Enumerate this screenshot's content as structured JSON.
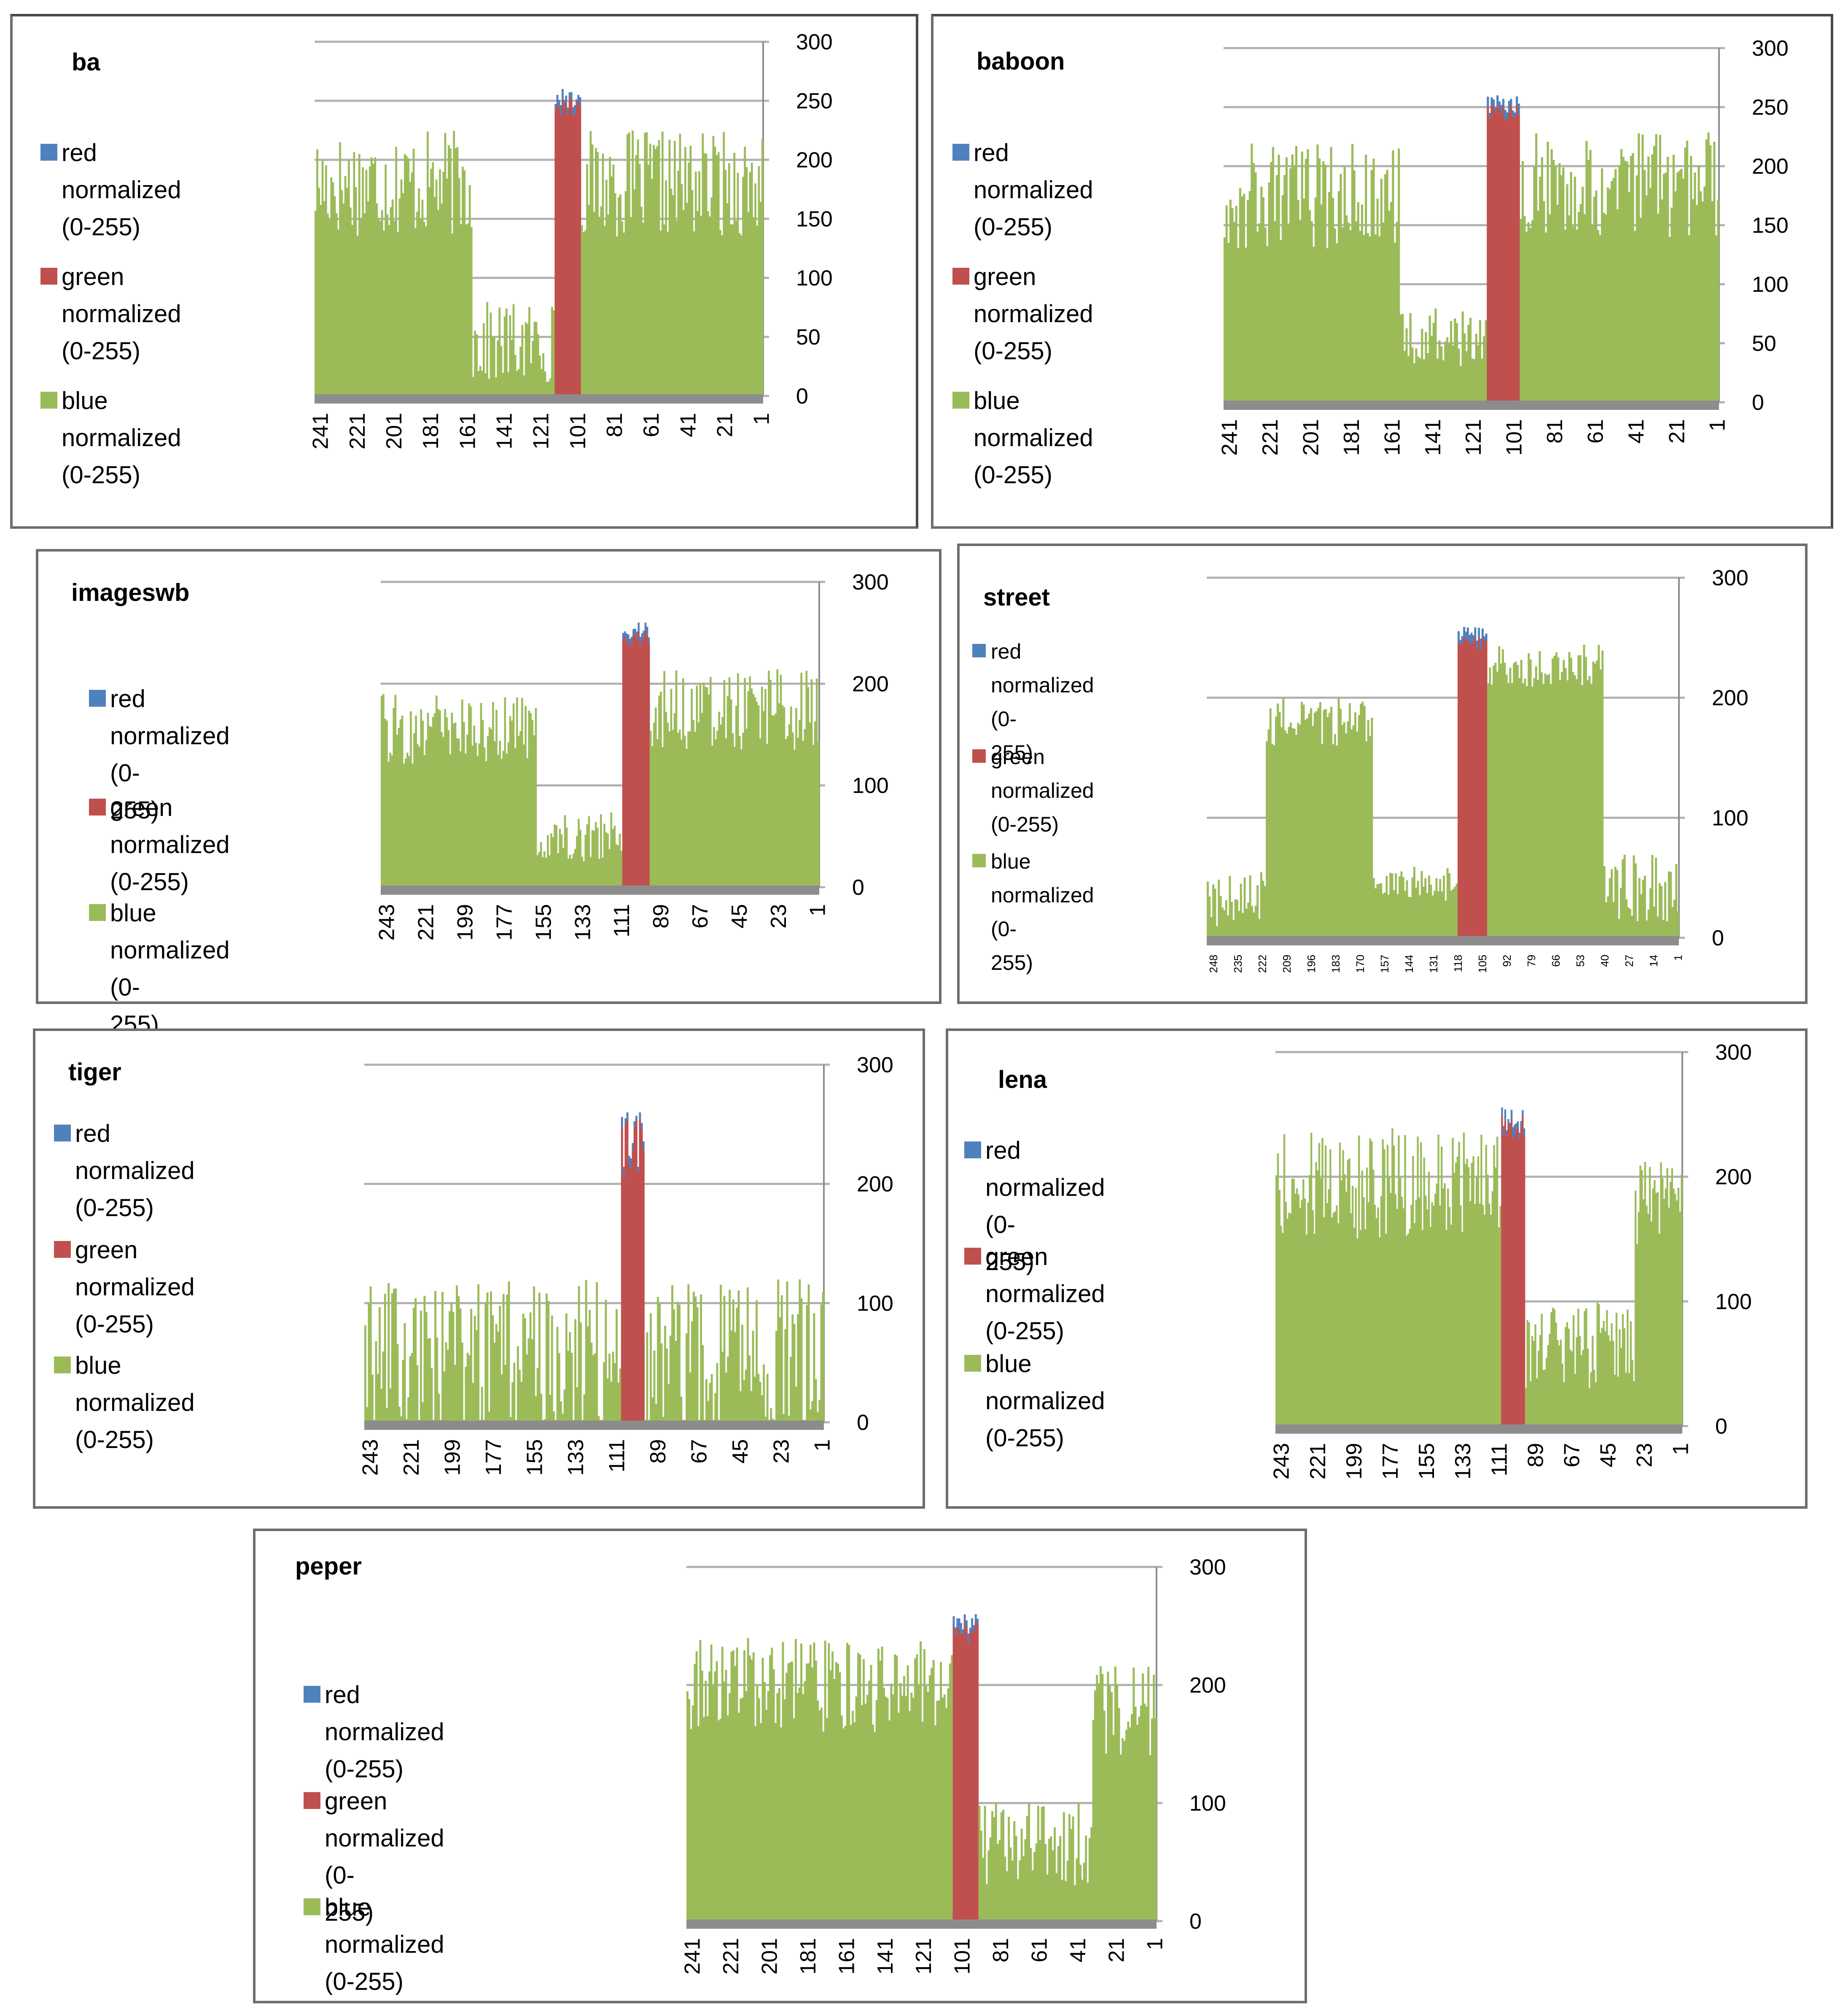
{
  "colors": {
    "red": "#4f81bd",
    "green": "#c0504d",
    "blue": "#9bbb59",
    "grid": "#b0b0b0",
    "base": "#8c8c8c"
  },
  "charts": [
    {
      "id": "ba",
      "title": "ba",
      "legend": [
        "red normalized\n(0-255)",
        "green normalized\n(0-255)",
        "blue normalized\n(0-255)"
      ],
      "y_ticks": [
        "300",
        "250",
        "200",
        "150",
        "100",
        "50",
        "0"
      ],
      "x_ticks": [
        "241",
        "221",
        "201",
        "181",
        "161",
        "141",
        "121",
        "101",
        "81",
        "61",
        "41",
        "21",
        "1"
      ],
      "chart_data": {
        "type": "bar",
        "stacked": true,
        "x_range": [
          256,
          1
        ],
        "ylim": [
          0,
          300
        ],
        "segments": [
          {
            "from": 256,
            "to": 167,
            "series": "blue normalized (0-255)",
            "level": 180,
            "spread": 45
          },
          {
            "from": 166,
            "to": 120,
            "series": "blue normalized (0-255)",
            "level": 45,
            "spread": 35
          },
          {
            "from": 119,
            "to": 105,
            "series": "green normalized (0-255)",
            "level": 245,
            "spread": 8
          },
          {
            "from": 104,
            "to": 1,
            "series": "blue normalized (0-255)",
            "level": 180,
            "spread": 45
          }
        ]
      }
    },
    {
      "id": "baboon",
      "title": "baboon",
      "legend": [
        "red normalized\n(0-255)",
        "green normalized\n(0-255)",
        "blue normalized\n(0-255)"
      ],
      "y_ticks": [
        "300",
        "250",
        "200",
        "150",
        "100",
        "50",
        "0"
      ],
      "x_ticks": [
        "241",
        "221",
        "201",
        "181",
        "161",
        "141",
        "121",
        "101",
        "81",
        "61",
        "41",
        "21",
        "1"
      ],
      "chart_data": {
        "type": "bar",
        "stacked": true,
        "x_range": [
          256,
          1
        ],
        "ylim": [
          0,
          300
        ],
        "segments": [
          {
            "from": 256,
            "to": 166,
            "series": "blue normalized (0-255)",
            "level": 175,
            "spread": 45
          },
          {
            "from": 165,
            "to": 121,
            "series": "blue normalized (0-255)",
            "level": 55,
            "spread": 25
          },
          {
            "from": 120,
            "to": 104,
            "series": "green normalized (0-255)",
            "level": 245,
            "spread": 8
          },
          {
            "from": 103,
            "to": 1,
            "series": "blue normalized (0-255)",
            "level": 185,
            "spread": 45
          }
        ]
      }
    },
    {
      "id": "imageswb",
      "title": "imageswb",
      "legend": [
        "red normalized  (0-\n255)",
        "green normalized\n(0-255)",
        "blue normalized  (0-\n255)"
      ],
      "y_ticks": [
        "300",
        "200",
        "100",
        "0"
      ],
      "x_ticks": [
        "243",
        "221",
        "199",
        "177",
        "155",
        "133",
        "111",
        "89",
        "67",
        "45",
        "23",
        "1"
      ],
      "chart_data": {
        "type": "bar",
        "stacked": true,
        "x_range": [
          256,
          1
        ],
        "ylim": [
          0,
          300
        ],
        "segments": [
          {
            "from": 256,
            "to": 166,
            "series": "blue normalized (0-255)",
            "level": 155,
            "spread": 35
          },
          {
            "from": 165,
            "to": 116,
            "series": "blue normalized (0-255)",
            "level": 50,
            "spread": 25
          },
          {
            "from": 115,
            "to": 100,
            "series": "green normalized (0-255)",
            "level": 245,
            "spread": 8
          },
          {
            "from": 99,
            "to": 1,
            "series": "blue normalized (0-255)",
            "level": 175,
            "spread": 40
          }
        ]
      }
    },
    {
      "id": "street",
      "title": "street",
      "legend": [
        "red normalized (0-\n255)",
        "green normalized\n(0-255)",
        "blue normalized (0-\n255)"
      ],
      "y_ticks": [
        "300",
        "200",
        "100",
        "0"
      ],
      "x_ticks": [
        "248",
        "235",
        "222",
        "209",
        "196",
        "183",
        "170",
        "157",
        "144",
        "131",
        "118",
        "105",
        "92",
        "79",
        "66",
        "53",
        "40",
        "27",
        "14",
        "1"
      ],
      "chart_data": {
        "type": "bar",
        "stacked": true,
        "x_range": [
          256,
          1
        ],
        "ylim": [
          0,
          300
        ],
        "segments": [
          {
            "from": 256,
            "to": 225,
            "series": "blue normalized (0-255)",
            "level": 30,
            "spread": 25
          },
          {
            "from": 224,
            "to": 167,
            "series": "blue normalized (0-255)",
            "level": 180,
            "spread": 20
          },
          {
            "from": 166,
            "to": 121,
            "series": "blue normalized (0-255)",
            "level": 45,
            "spread": 15
          },
          {
            "from": 120,
            "to": 105,
            "series": "green normalized (0-255)",
            "level": 245,
            "spread": 6
          },
          {
            "from": 104,
            "to": 42,
            "series": "blue normalized (0-255)",
            "level": 225,
            "spread": 20
          },
          {
            "from": 41,
            "to": 1,
            "series": "blue normalized (0-255)",
            "level": 40,
            "spread": 30
          }
        ]
      }
    },
    {
      "id": "tiger",
      "title": "tiger",
      "legend": [
        "red normalized\n(0-255)",
        "green normalized\n(0-255)",
        "blue normalized\n(0-255)"
      ],
      "y_ticks": [
        "300",
        "200",
        "100",
        "0"
      ],
      "x_ticks": [
        "243",
        "221",
        "199",
        "177",
        "155",
        "133",
        "111",
        "89",
        "67",
        "45",
        "23",
        "1"
      ],
      "chart_data": {
        "type": "bar",
        "stacked": true,
        "x_range": [
          256,
          1
        ],
        "ylim": [
          0,
          300
        ],
        "segments": [
          {
            "from": 256,
            "to": 1,
            "series": "blue normalized (0-255)",
            "level": 55,
            "spread": 65
          },
          {
            "from": 113,
            "to": 101,
            "series": "green normalized (0-255)",
            "level": 230,
            "spread": 25
          }
        ]
      }
    },
    {
      "id": "lena",
      "title": "lena",
      "legend": [
        "red normalized  (0-\n255)",
        "green normalized\n(0-255)",
        "blue normalized\n(0-255)"
      ],
      "y_ticks": [
        "300",
        "200",
        "100",
        "0"
      ],
      "x_ticks": [
        "243",
        "221",
        "199",
        "177",
        "155",
        "133",
        "111",
        "89",
        "67",
        "45",
        "23",
        "1"
      ],
      "chart_data": {
        "type": "bar",
        "stacked": true,
        "x_range": [
          256,
          1
        ],
        "ylim": [
          0,
          300
        ],
        "segments": [
          {
            "from": 256,
            "to": 115,
            "series": "blue normalized (0-255)",
            "level": 195,
            "spread": 45
          },
          {
            "from": 114,
            "to": 100,
            "series": "green normalized (0-255)",
            "level": 240,
            "spread": 10
          },
          {
            "from": 99,
            "to": 31,
            "series": "blue normalized (0-255)",
            "level": 65,
            "spread": 35
          },
          {
            "from": 30,
            "to": 1,
            "series": "blue normalized (0-255)",
            "level": 180,
            "spread": 35
          }
        ]
      }
    },
    {
      "id": "peper",
      "title": "peper",
      "legend": [
        "red normalized  (0-255)",
        "green normalized  (0-\n255)",
        "blue normalized  (0-255)"
      ],
      "y_ticks": [
        "300",
        "200",
        "100",
        "0"
      ],
      "x_ticks": [
        "241",
        "221",
        "201",
        "181",
        "161",
        "141",
        "121",
        "101",
        "81",
        "61",
        "41",
        "21",
        "1"
      ],
      "chart_data": {
        "type": "bar",
        "stacked": true,
        "x_range": [
          256,
          1
        ],
        "ylim": [
          0,
          300
        ],
        "segments": [
          {
            "from": 256,
            "to": 112,
            "series": "blue normalized (0-255)",
            "level": 200,
            "spread": 40
          },
          {
            "from": 111,
            "to": 98,
            "series": "green normalized (0-255)",
            "level": 245,
            "spread": 10
          },
          {
            "from": 97,
            "to": 36,
            "series": "blue normalized (0-255)",
            "level": 65,
            "spread": 35
          },
          {
            "from": 35,
            "to": 1,
            "series": "blue normalized (0-255)",
            "level": 180,
            "spread": 40
          }
        ]
      }
    }
  ]
}
